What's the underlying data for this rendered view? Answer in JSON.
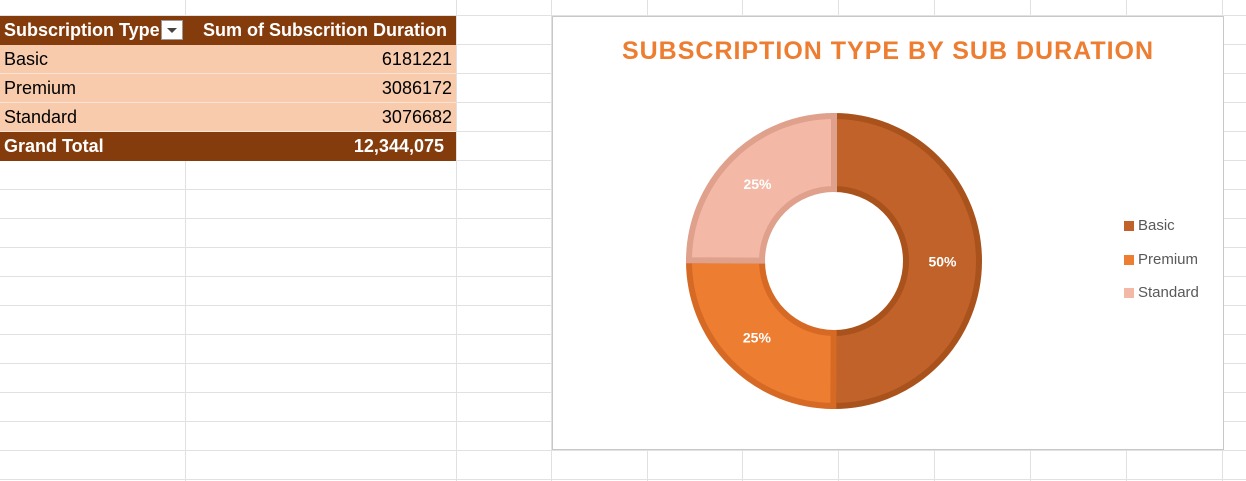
{
  "pivot": {
    "header": {
      "col1": "Subscription Type",
      "col2": "Sum of Subscrition Duration"
    },
    "rows": [
      {
        "label": "Basic",
        "value": "6181221"
      },
      {
        "label": "Premium",
        "value": "3086172"
      },
      {
        "label": "Standard",
        "value": "3076682"
      }
    ],
    "total": {
      "label": "Grand Total",
      "value": "12,344,075"
    }
  },
  "chart": {
    "title": "SUBSCRIPTION TYPE BY SUB DURATION"
  },
  "chart_data": {
    "type": "pie",
    "variant": "donut",
    "title": "SUBSCRIPTION TYPE BY SUB DURATION",
    "categories": [
      "Basic",
      "Premium",
      "Standard"
    ],
    "values": [
      6181221,
      3086172,
      3076682
    ],
    "data_labels": [
      "50%",
      "25%",
      "25%"
    ],
    "colors": [
      "#c0622a",
      "#ed7d31",
      "#f4b9a6"
    ],
    "legend_position": "right"
  },
  "colors": {
    "header_bg": "#843c0c",
    "row_bg": "#f8cbad",
    "title": "#ed7d31"
  }
}
